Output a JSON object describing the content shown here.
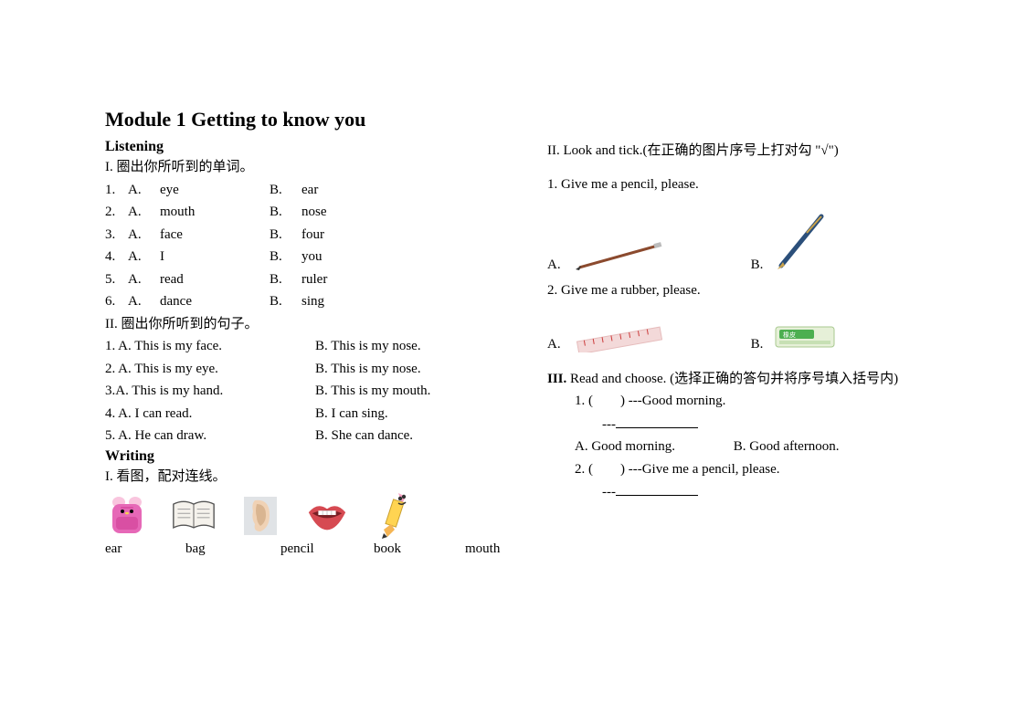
{
  "module_title": "Module 1 Getting to know you",
  "listening_label": "Listening",
  "writing_label": "Writing",
  "sec1_title": "I. 圈出你所听到的单词。",
  "words": [
    {
      "n": "1.",
      "a": "A.",
      "aw": "eye",
      "b": "B.",
      "bw": "ear"
    },
    {
      "n": "2.",
      "a": "A.",
      "aw": "mouth",
      "b": "B.",
      "bw": "nose"
    },
    {
      "n": "3.",
      "a": "A.",
      "aw": "face",
      "b": "B.",
      "bw": "four"
    },
    {
      "n": "4.",
      "a": "A.",
      "aw": " I",
      "b": "B.",
      "bw": "you"
    },
    {
      "n": "5.",
      "a": "A.",
      "aw": "read",
      "b": "B.",
      "bw": "ruler"
    },
    {
      "n": "6.",
      "a": "A.",
      "aw": "dance",
      "b": "B.",
      "bw": "sing"
    }
  ],
  "sec2_title": "II. 圈出你所听到的句子。",
  "sentences": [
    {
      "l": "1. A. This is my face.",
      "r": "B. This is my nose."
    },
    {
      "l": "2. A. This is my eye.",
      "r": "B. This is my nose."
    },
    {
      "l": "3.A. This is my hand.",
      "r": "B. This is my mouth."
    },
    {
      "l": "4. A. I can read.",
      "r": "B. I can sing."
    },
    {
      "l": "5. A. He can draw.",
      "r": "B. She can dance."
    }
  ],
  "writing1_title": "I. 看图，配对连线。",
  "match_words": [
    "ear",
    "bag",
    "pencil",
    "book",
    "mouth"
  ],
  "match_word_widths": [
    56,
    72,
    70,
    68,
    50
  ],
  "right_sec2_title": "II. Look and tick.(在正确的图片序号上打对勾 \"√\")",
  "tick_q1": "1. Give me a pencil, please.",
  "tick_q2": "2. Give me a rubber, please.",
  "opt_a": "A.",
  "opt_b": "B.",
  "right_sec3_title": "III. Read and choose. (选择正确的答句并将序号填入括号内)",
  "rc_q1_line1": "1. (  ) ---Good morning.",
  "rc_q1_line2": "---",
  "rc_q1_a": "A. Good morning.",
  "rc_q1_b": "B. Good afternoon.",
  "rc_q2_line1": "2. (  ) ---Give me a pencil, please.",
  "rc_q2_line2": "---",
  "colors": {
    "bag_body": "#e668b7",
    "bag_ears": "#f9c5de",
    "book_page": "#f5f2ec",
    "book_line": "#555",
    "ear_skin": "#f0d2b5",
    "ear_shadow": "#d9b591",
    "mouth_lip": "#d64a52",
    "mouth_teeth": "#fff",
    "pencil_body": "#ffd452",
    "pencil_tip": "#f5b554",
    "pencil_eraser": "#f7a3c4",
    "pencil_thin": "#8b4a2e",
    "pen_body": "#2b4f7a",
    "pen_gold": "#c9a24a",
    "ruler_body": "#f3d9d9",
    "ruler_text": "#cc3b3b",
    "eraser_body": "#e6f0d8",
    "eraser_label": "#4caf50"
  }
}
